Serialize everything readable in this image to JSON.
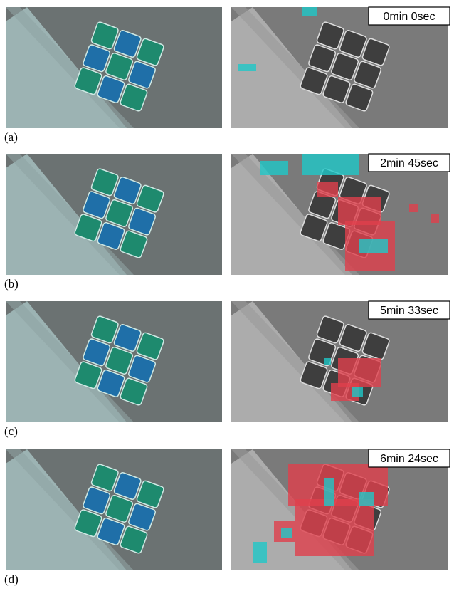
{
  "panels": [
    {
      "label": "(a)",
      "timestamp": "0min 0sec"
    },
    {
      "label": "(b)",
      "timestamp": "2min 45sec"
    },
    {
      "label": "(c)",
      "timestamp": "5min 33sec"
    },
    {
      "label": "(d)",
      "timestamp": "6min 24sec"
    }
  ]
}
